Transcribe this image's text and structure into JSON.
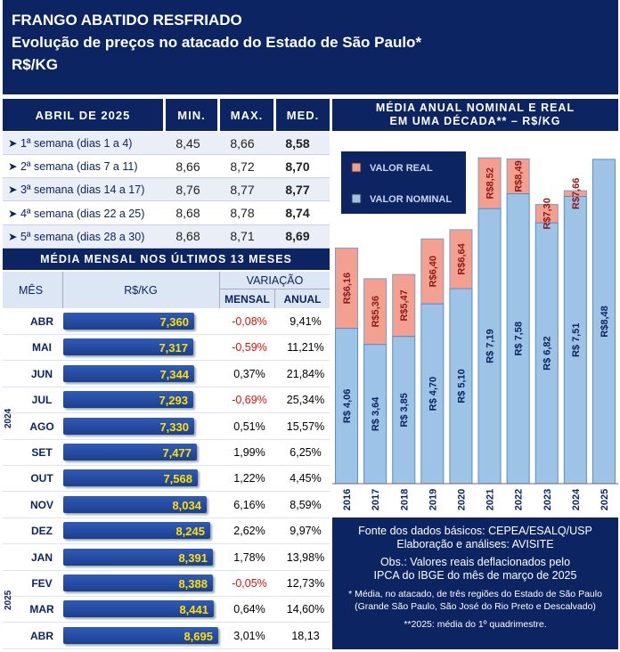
{
  "title": {
    "line1": "FRANGO ABATIDO RESFRIADO",
    "line2": "Evolução de preços no  atacado do Estado de São Paulo*",
    "line3": "R$/KG"
  },
  "weekly": {
    "headers": {
      "period": "ABRIL DE 2025",
      "min": "MIN.",
      "max": "MAX.",
      "med": "MED."
    },
    "rows": [
      {
        "label": "➤ 1ª semana (dias 1 a 4)",
        "min": "8,45",
        "max": "8,66",
        "med": "8,58"
      },
      {
        "label": "➤ 2ª semana (dias 7 a 11)",
        "min": "8,66",
        "max": "8,72",
        "med": "8,70"
      },
      {
        "label": "➤ 3ª semana (dias 14 a 17)",
        "min": "8,76",
        "max": "8,77",
        "med": "8,77"
      },
      {
        "label": "➤ 4ª semana (dias 22 a 25)",
        "min": "8,68",
        "max": "8,78",
        "med": "8,74"
      },
      {
        "label": "➤ 5ª semana (dias 28 a 30)",
        "min": "8,68",
        "max": "8,71",
        "med": "8,69"
      }
    ]
  },
  "monthly": {
    "title": "MÉDIA MENSAL NOS ÚLTIMOS 13 MESES",
    "headers": {
      "month": "MÊS",
      "price": "R$/KG",
      "variation": "VARIAÇÃO",
      "monthly": "MENSAL",
      "annual": "ANUAL"
    },
    "year_labels": [
      "2024",
      "2025"
    ],
    "rows": [
      {
        "month": "ABR",
        "value": 7.36,
        "label": "7,360",
        "mensal": "-0,08%",
        "anual": "9,41%"
      },
      {
        "month": "MAI",
        "value": 7.317,
        "label": "7,317",
        "mensal": "-0,59%",
        "anual": "11,21%"
      },
      {
        "month": "JUN",
        "value": 7.344,
        "label": "7,344",
        "mensal": "0,37%",
        "anual": "21,84%"
      },
      {
        "month": "JUL",
        "value": 7.293,
        "label": "7,293",
        "mensal": "-0,69%",
        "anual": "25,34%"
      },
      {
        "month": "AGO",
        "value": 7.33,
        "label": "7,330",
        "mensal": "0,51%",
        "anual": "15,57%"
      },
      {
        "month": "SET",
        "value": 7.477,
        "label": "7,477",
        "mensal": "1,99%",
        "anual": "6,25%"
      },
      {
        "month": "OUT",
        "value": 7.568,
        "label": "7,568",
        "mensal": "1,22%",
        "anual": "4,45%"
      },
      {
        "month": "NOV",
        "value": 8.034,
        "label": "8,034",
        "mensal": "6,16%",
        "anual": "8,59%"
      },
      {
        "month": "DEZ",
        "value": 8.245,
        "label": "8,245",
        "mensal": "2,62%",
        "anual": "9,97%"
      },
      {
        "month": "JAN",
        "value": 8.391,
        "label": "8,391",
        "mensal": "1,78%",
        "anual": "13,98%"
      },
      {
        "month": "FEV",
        "value": 8.388,
        "label": "8,388",
        "mensal": "-0,05%",
        "anual": "12,73%"
      },
      {
        "month": "MAR",
        "value": 8.441,
        "label": "8,441",
        "mensal": "0,64%",
        "anual": "14,60%"
      },
      {
        "month": "ABR",
        "value": 8.695,
        "label": "8,695",
        "mensal": "3,01%",
        "anual": "18,13"
      }
    ]
  },
  "chart_data": {
    "type": "bar",
    "title": "MÉDIA ANUAL NOMINAL E REAL\nEM UMA DÉCADA** – R$/KG",
    "categories": [
      "2016",
      "2017",
      "2018",
      "2019",
      "2020",
      "2021",
      "2022",
      "2023",
      "2024",
      "2025"
    ],
    "series": [
      {
        "name": "VALOR NOMINAL",
        "color": "#9dc3e6",
        "values": [
          4.06,
          3.64,
          3.85,
          4.7,
          5.1,
          7.19,
          7.58,
          6.82,
          7.51,
          8.48
        ],
        "labels": [
          "R$ 4,06",
          "R$ 3,64",
          "R$ 3,85",
          "R$ 4,70",
          "R$ 5,10",
          "R$ 7,19",
          "R$ 7,58",
          "R$ 6,82",
          "R$ 7,51",
          "R$8,48"
        ]
      },
      {
        "name": "VALOR REAL",
        "color": "#f4a090",
        "values": [
          6.16,
          5.36,
          5.47,
          6.4,
          6.64,
          8.52,
          8.49,
          7.3,
          7.66,
          8.48
        ],
        "labels": [
          "R$6,16",
          "R$5,36",
          "R$5,47",
          "R$6,40",
          "R$6,64",
          "R$8,52",
          "R$8,49",
          "R$7,30",
          "R$7,66",
          ""
        ]
      }
    ],
    "legend_position": "top-left",
    "ylim": [
      0,
      9.2
    ],
    "grid": false
  },
  "source": {
    "line1": "Fonte dos dados básicos: CEPEA/ESALQ/USP",
    "line2": "Elaboração e análises: AVISITE",
    "line3": "Obs.: Valores reais deflacionados pelo",
    "line4": "IPCA do IBGE do mês de março de 2025",
    "note1": "* Média, no atacado, de três regiões do Estado de São Paulo",
    "note2": "(Grande São Paulo, São José do Rio Preto e Descalvado)",
    "note3": "**2025: média do 1º quadrimestre."
  }
}
